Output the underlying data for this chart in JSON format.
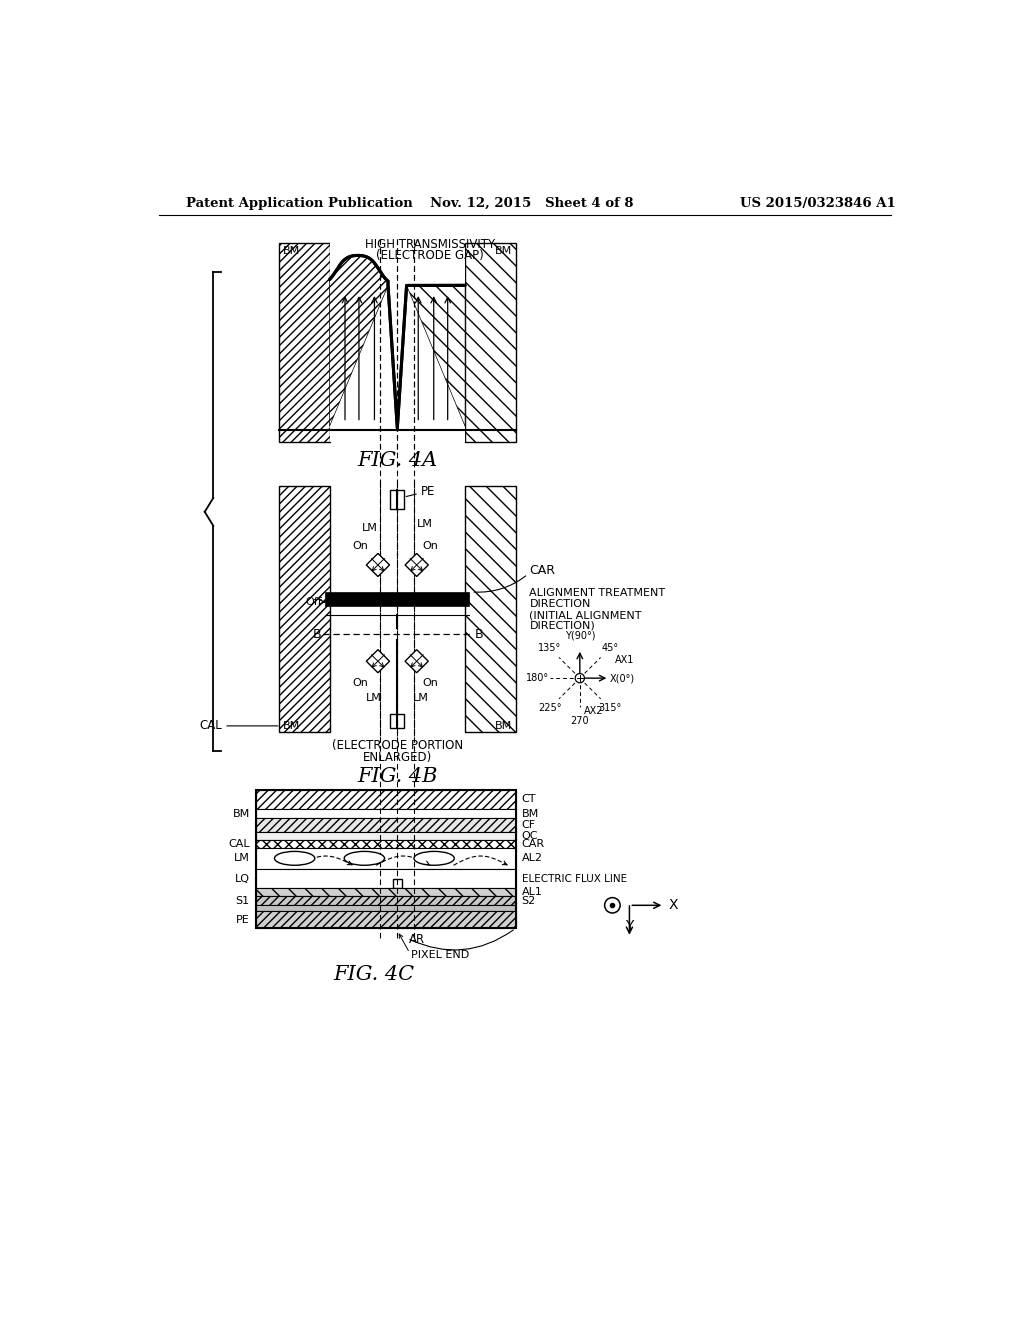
{
  "header_left": "Patent Application Publication",
  "header_mid": "Nov. 12, 2015   Sheet 4 of 8",
  "header_right": "US 2015/0323846 A1",
  "bg_color": "#ffffff",
  "line_color": "#000000"
}
